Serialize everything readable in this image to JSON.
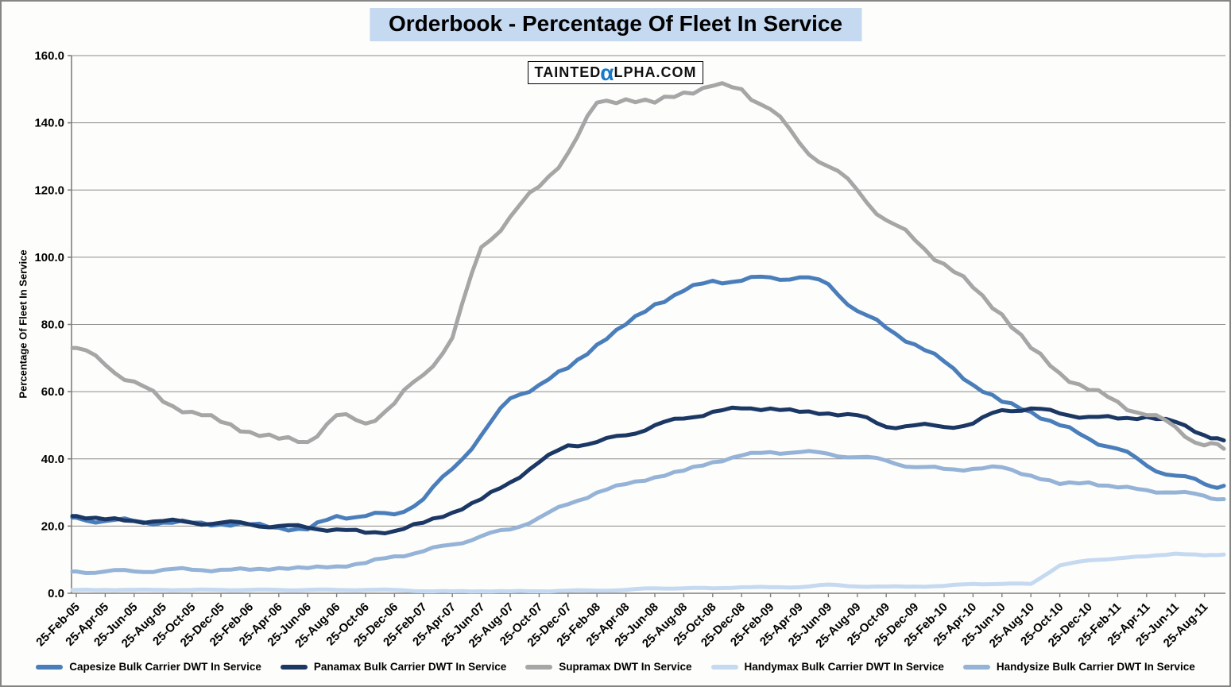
{
  "title": "Orderbook - Percentage Of Fleet In Service",
  "watermark": {
    "part1": "TAINTED",
    "alpha": "α",
    "part2": "LPHA.COM"
  },
  "colors": {
    "title_bg": "#c5d9f1",
    "axis": "#7f7f7f",
    "grid": "#8c8c8c",
    "watermark_alpha_blue": "#1779c8",
    "frame_border": "#858585"
  },
  "chart_data": {
    "type": "line",
    "title": "Orderbook - Percentage Of Fleet In Service",
    "xlabel": "",
    "ylabel": "Percentage Of Fleet In Service",
    "ylim": [
      0,
      160
    ],
    "ytick_step": 20,
    "y_ticks": [
      "0.0",
      "20.0",
      "40.0",
      "60.0",
      "80.0",
      "100.0",
      "120.0",
      "140.0",
      "160.0"
    ],
    "grid": true,
    "legend_position": "bottom",
    "categories": [
      "25-Feb-05",
      "25-Apr-05",
      "25-Jun-05",
      "25-Aug-05",
      "25-Oct-05",
      "25-Dec-05",
      "25-Feb-06",
      "25-Apr-06",
      "25-Jun-06",
      "25-Aug-06",
      "25-Oct-06",
      "25-Dec-06",
      "25-Feb-07",
      "25-Apr-07",
      "25-Jun-07",
      "25-Aug-07",
      "25-Oct-07",
      "25-Dec-07",
      "25-Feb-08",
      "25-Apr-08",
      "25-Jun-08",
      "25-Aug-08",
      "25-Oct-08",
      "25-Dec-08",
      "25-Feb-09",
      "25-Apr-09",
      "25-Jun-09",
      "25-Aug-09",
      "25-Oct-09",
      "25-Dec-09",
      "25-Feb-10",
      "25-Apr-10",
      "25-Jun-10",
      "25-Aug-10",
      "25-Oct-10",
      "25-Dec-10",
      "25-Feb-11",
      "25-Apr-11",
      "25-Jun-11",
      "25-Aug-11",
      ""
    ],
    "series": [
      {
        "name": "Capesize Bulk Carrier DWT In Service",
        "color": "#4a7ebb",
        "values": [
          22.5,
          21.5,
          21.5,
          21,
          21,
          20.5,
          20.5,
          19.5,
          19,
          23,
          23,
          23.5,
          28,
          37,
          47,
          58,
          62,
          67,
          74,
          80,
          86,
          90,
          93,
          93,
          94,
          94,
          92,
          84,
          79,
          74,
          69,
          62,
          57,
          54,
          50,
          46,
          43,
          38,
          35,
          32.5,
          32
        ]
      },
      {
        "name": "Panamax Bulk Carrier DWT In Service",
        "color": "#1b3764",
        "values": [
          23,
          22,
          21.5,
          21.5,
          21,
          21,
          20.5,
          20,
          19.5,
          19,
          18,
          18.5,
          21,
          24,
          28,
          33,
          39,
          44,
          45,
          47,
          50,
          52,
          54,
          55,
          55,
          54,
          53.5,
          53,
          49.5,
          50,
          49.5,
          50.5,
          54.5,
          55,
          53.5,
          52.5,
          52,
          52.5,
          51,
          47,
          45.5
        ]
      },
      {
        "name": "Supramax DWT In Service",
        "color": "#a6a6a6",
        "values": [
          73,
          68,
          63,
          57,
          54,
          51,
          48,
          46,
          45,
          53,
          50.5,
          56.5,
          65,
          76,
          103,
          112,
          121,
          131,
          146,
          147,
          146,
          149,
          151,
          150,
          144,
          134,
          127,
          120,
          111,
          105,
          98,
          91,
          83,
          73,
          65.5,
          60.5,
          57,
          53,
          49.5,
          44,
          43
        ]
      },
      {
        "name": "Handymax Bulk Carrier DWT In Service",
        "color": "#c5d9f1",
        "values": [
          1,
          1,
          1,
          1,
          1,
          1,
          1,
          1,
          1,
          1,
          1,
          1,
          0.6,
          0.6,
          0.6,
          0.6,
          0.6,
          0.8,
          0.8,
          1,
          1.5,
          1.5,
          1.5,
          1.8,
          1.8,
          1.8,
          2.6,
          2,
          2,
          2,
          2.2,
          2.8,
          2.8,
          2.8,
          8.3,
          9.8,
          10.4,
          11,
          11.8,
          11.3,
          11.5
        ]
      },
      {
        "name": "Handysize Bulk Carrier DWT In Service",
        "color": "#95b3d7",
        "values": [
          6.5,
          6.5,
          6.5,
          7,
          7,
          7,
          7,
          7.5,
          7.5,
          8,
          9,
          11,
          12.5,
          14.5,
          17,
          19,
          22.5,
          26.5,
          30,
          32.5,
          34.5,
          36.5,
          39,
          41,
          42,
          42,
          41.5,
          40.5,
          39.5,
          37.5,
          37,
          37,
          37.5,
          35,
          32.5,
          33,
          31.5,
          30.7,
          30,
          29,
          28
        ]
      }
    ]
  }
}
